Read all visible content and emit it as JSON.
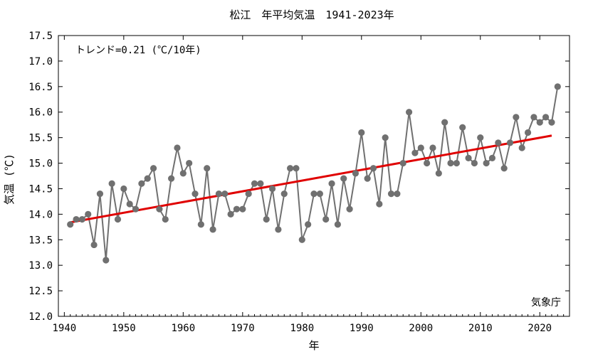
{
  "chart_data": {
    "type": "line",
    "title": "松江　年平均気温　1941-2023年",
    "xlabel": "年",
    "ylabel": "気温 (℃)",
    "trend_label": "トレンド=0.21 (℃/10年)",
    "source": "気象庁",
    "xlim": [
      1939,
      2025
    ],
    "ylim": [
      12.0,
      17.5
    ],
    "xticks": [
      1940,
      1950,
      1960,
      1970,
      1980,
      1990,
      2000,
      2010,
      2020
    ],
    "yticks": [
      12.0,
      12.5,
      13.0,
      13.5,
      14.0,
      14.5,
      15.0,
      15.5,
      16.0,
      16.5,
      17.0,
      17.5
    ],
    "grid": false,
    "series": [
      {
        "color": "#707070",
        "marker": "circle",
        "x": [
          1941,
          1942,
          1943,
          1944,
          1945,
          1946,
          1947,
          1948,
          1949,
          1950,
          1951,
          1952,
          1953,
          1954,
          1955,
          1956,
          1957,
          1958,
          1959,
          1960,
          1961,
          1962,
          1963,
          1964,
          1965,
          1966,
          1967,
          1968,
          1969,
          1970,
          1971,
          1972,
          1973,
          1974,
          1975,
          1976,
          1977,
          1978,
          1979,
          1980,
          1981,
          1982,
          1983,
          1984,
          1985,
          1986,
          1987,
          1988,
          1989,
          1990,
          1991,
          1992,
          1993,
          1994,
          1995,
          1996,
          1997,
          1998,
          1999,
          2000,
          2001,
          2002,
          2003,
          2004,
          2005,
          2006,
          2007,
          2008,
          2009,
          2010,
          2011,
          2012,
          2013,
          2014,
          2015,
          2016,
          2017,
          2018,
          2019,
          2020,
          2021,
          2022,
          2023
        ],
        "y": [
          13.8,
          13.9,
          13.9,
          14.0,
          13.4,
          14.4,
          13.1,
          14.6,
          13.9,
          14.5,
          14.2,
          14.1,
          14.6,
          14.7,
          14.9,
          14.1,
          13.9,
          14.7,
          15.3,
          14.8,
          15.0,
          14.4,
          13.8,
          14.9,
          13.7,
          14.4,
          14.4,
          14.0,
          14.1,
          14.1,
          14.4,
          14.6,
          14.6,
          13.9,
          14.5,
          13.7,
          14.4,
          14.9,
          14.9,
          13.5,
          13.8,
          14.4,
          14.4,
          13.9,
          14.6,
          13.8,
          14.7,
          14.1,
          14.8,
          15.6,
          14.7,
          14.9,
          14.2,
          15.5,
          14.4,
          14.4,
          15.0,
          16.0,
          15.2,
          15.3,
          15.0,
          15.3,
          14.8,
          15.8,
          15.0,
          15.0,
          15.7,
          15.1,
          15.0,
          15.5,
          15.0,
          15.1,
          15.4,
          14.9,
          15.4,
          15.9,
          15.3,
          15.6,
          15.9,
          15.8,
          15.9,
          15.8,
          16.5
        ]
      }
    ],
    "trend": {
      "color": "#e00000",
      "x": [
        1941,
        2022
      ],
      "y": [
        13.84,
        15.54
      ]
    }
  }
}
